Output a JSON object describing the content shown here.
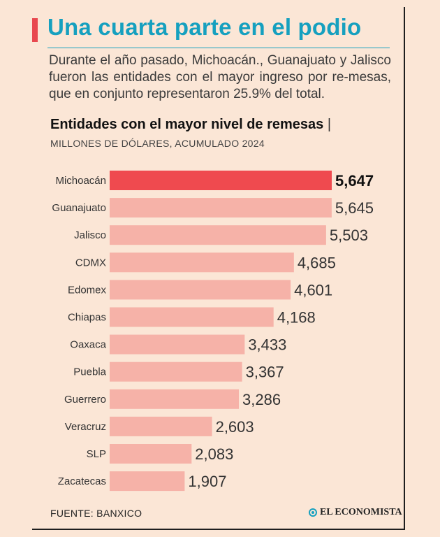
{
  "header": {
    "title": "Una cuarta parte en el podio",
    "subtitle": "Durante el año pasado, Michoacán., Guanajuato y Jalisco fueron las entidades con el mayor ingreso por re-mesas, que en conjunto representaron 25.9% del total."
  },
  "chart_heading": {
    "title": "Entidades con el mayor nivel de remesas",
    "separator": "|",
    "units": "MILLONES DE DÓLARES, ACUMULADO 2024"
  },
  "colors": {
    "highlight": "#ef4a4f",
    "bar": "#f6b2a8",
    "title": "#16a0bf",
    "background": "#fbe6d6"
  },
  "chart_data": {
    "type": "bar",
    "orientation": "horizontal",
    "title": "Entidades con el mayor nivel de remesas",
    "ylabel": "MILLONES DE DÓLARES, ACUMULADO 2024",
    "categories": [
      "Michoacán",
      "Guanajuato",
      "Jalisco",
      "CDMX",
      "Edomex",
      "Chiapas",
      "Oaxaca",
      "Puebla",
      "Guerrero",
      "Veracruz",
      "SLP",
      "Zacatecas"
    ],
    "values": [
      5647,
      5645,
      5503,
      4685,
      4601,
      4168,
      3433,
      3367,
      3286,
      2603,
      2083,
      1907
    ],
    "value_labels": [
      "5,647",
      "5,645",
      "5,503",
      "4,685",
      "4,601",
      "4,168",
      "3,433",
      "3,367",
      "3,286",
      "2,603",
      "2,083",
      "1,907"
    ],
    "highlight_index": 0,
    "xlim": [
      0,
      5647
    ]
  },
  "footer": {
    "source": "FUENTE: BANXICO",
    "brand": "EL ECONOMISTA"
  }
}
